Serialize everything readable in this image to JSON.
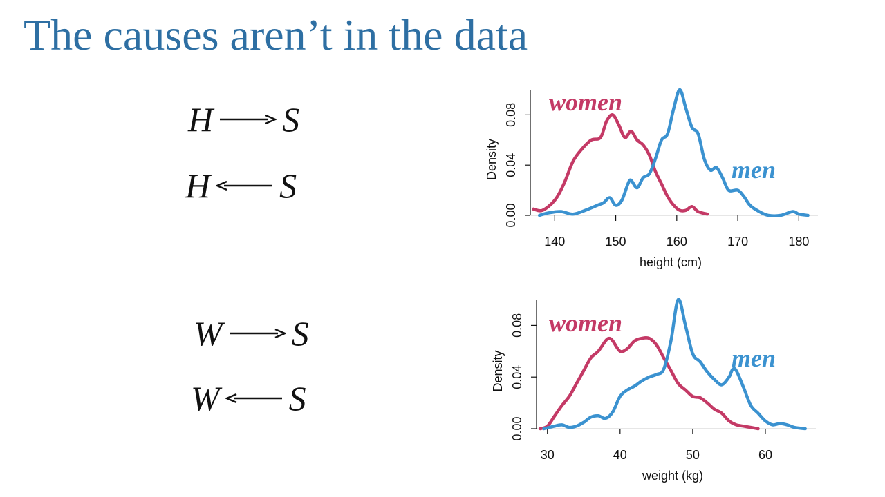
{
  "slide": {
    "title": "The causes aren’t in the data"
  },
  "dags": [
    {
      "left": "H",
      "right": "S",
      "direction": "right"
    },
    {
      "left": "H",
      "right": "S",
      "direction": "left"
    },
    {
      "left": "W",
      "right": "S",
      "direction": "right"
    },
    {
      "left": "W",
      "right": "S",
      "direction": "left"
    }
  ],
  "colors": {
    "title": "#2e6fa3",
    "women": "#c43a66",
    "men": "#3b92d0",
    "text": "#111111"
  },
  "chart_data": [
    {
      "type": "line",
      "title": "",
      "xlabel": "height (cm)",
      "ylabel": "Density",
      "xlim": [
        136,
        182
      ],
      "ylim": [
        0,
        0.1
      ],
      "xticks": [
        140,
        150,
        160,
        170,
        180
      ],
      "yticks": [
        0.0,
        0.04,
        0.08
      ],
      "ytick_labels": [
        "0.00",
        "0.04",
        "0.08"
      ],
      "series": [
        {
          "name": "women",
          "x": [
            136.5,
            138,
            140,
            141.5,
            143,
            144.5,
            146,
            147.5,
            148.5,
            149.5,
            150.5,
            151.5,
            152.5,
            153.5,
            154.5,
            155.5,
            156.5,
            157.5,
            158.5,
            159.5,
            160.5,
            161.5,
            162.5,
            163.5,
            165
          ],
          "values": [
            0.005,
            0.004,
            0.012,
            0.025,
            0.043,
            0.053,
            0.06,
            0.062,
            0.075,
            0.08,
            0.072,
            0.062,
            0.067,
            0.06,
            0.056,
            0.048,
            0.035,
            0.025,
            0.015,
            0.008,
            0.004,
            0.004,
            0.007,
            0.003,
            0.001
          ]
        },
        {
          "name": "men",
          "x": [
            137.5,
            139,
            141,
            143,
            145,
            147,
            148,
            149,
            150,
            151,
            152,
            152.5,
            153.5,
            154.5,
            155.5,
            156.5,
            157.5,
            158.5,
            159.5,
            160.5,
            161.5,
            162.5,
            163.5,
            164.5,
            165.5,
            166.5,
            167.5,
            168.5,
            170,
            171,
            172,
            173.5,
            175,
            177,
            179,
            180,
            181.5
          ],
          "values": [
            0,
            0.002,
            0.003,
            0.001,
            0.004,
            0.008,
            0.01,
            0.014,
            0.008,
            0.012,
            0.025,
            0.028,
            0.022,
            0.03,
            0.033,
            0.045,
            0.06,
            0.065,
            0.085,
            0.1,
            0.085,
            0.07,
            0.065,
            0.045,
            0.036,
            0.038,
            0.03,
            0.02,
            0.02,
            0.015,
            0.008,
            0.003,
            0,
            0,
            0.003,
            0.001,
            0
          ]
        }
      ],
      "annotations": [
        {
          "text": "women",
          "series": "women"
        },
        {
          "text": "men",
          "series": "men"
        }
      ]
    },
    {
      "type": "line",
      "title": "",
      "xlabel": "weight (kg)",
      "ylabel": "Density",
      "xlim": [
        28.5,
        66
      ],
      "ylim": [
        0,
        0.1
      ],
      "xticks": [
        30,
        40,
        50,
        60
      ],
      "yticks": [
        0.0,
        0.04,
        0.08
      ],
      "ytick_labels": [
        "0.00",
        "0.04",
        "0.08"
      ],
      "series": [
        {
          "name": "women",
          "x": [
            29,
            30,
            31,
            32,
            33,
            34,
            35,
            36,
            37,
            38,
            38.5,
            39,
            40,
            41,
            42,
            43,
            44,
            45,
            46,
            47,
            48,
            49,
            50,
            51,
            52,
            53,
            54,
            55,
            56,
            57,
            58,
            59
          ],
          "values": [
            0,
            0.002,
            0.01,
            0.018,
            0.025,
            0.035,
            0.045,
            0.055,
            0.06,
            0.068,
            0.07,
            0.068,
            0.06,
            0.062,
            0.068,
            0.07,
            0.07,
            0.065,
            0.055,
            0.045,
            0.035,
            0.03,
            0.025,
            0.024,
            0.02,
            0.015,
            0.012,
            0.006,
            0.003,
            0.002,
            0.001,
            0
          ]
        },
        {
          "name": "men",
          "x": [
            29.5,
            31,
            32,
            33,
            34,
            35,
            36,
            37,
            38,
            39,
            40,
            41,
            42,
            43,
            44,
            45,
            46,
            47,
            48,
            49,
            50,
            51,
            52,
            53,
            54,
            55,
            55.5,
            56,
            57,
            58,
            59,
            60,
            61,
            62,
            63,
            64,
            65.5
          ],
          "values": [
            0,
            0.002,
            0.003,
            0.001,
            0.002,
            0.005,
            0.009,
            0.01,
            0.008,
            0.013,
            0.025,
            0.03,
            0.033,
            0.037,
            0.04,
            0.042,
            0.046,
            0.068,
            0.1,
            0.08,
            0.058,
            0.052,
            0.044,
            0.038,
            0.034,
            0.04,
            0.046,
            0.045,
            0.032,
            0.018,
            0.012,
            0.006,
            0.003,
            0.004,
            0.003,
            0.001,
            0
          ]
        }
      ],
      "annotations": [
        {
          "text": "women",
          "series": "women"
        },
        {
          "text": "men",
          "series": "men"
        }
      ]
    }
  ]
}
